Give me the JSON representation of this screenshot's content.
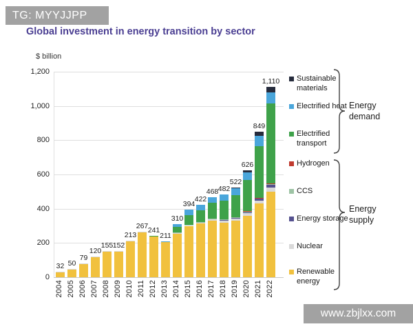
{
  "overlay_badges": {
    "top_left": "TG: MYYJJPP",
    "bottom_right": "www.zbjlxx.com"
  },
  "title": "Global investment in energy transition by sector",
  "y_axis": {
    "unit_label": "$ billion",
    "ticks": [
      {
        "value": 0,
        "label": "0"
      },
      {
        "value": 200,
        "label": "200"
      },
      {
        "value": 400,
        "label": "400"
      },
      {
        "value": 600,
        "label": "600"
      },
      {
        "value": 800,
        "label": "800"
      },
      {
        "value": 1000,
        "label": "1,000"
      },
      {
        "value": 1200,
        "label": "1,200"
      }
    ]
  },
  "chart_data": {
    "type": "bar",
    "stacked": true,
    "title": "Global investment in energy transition by sector",
    "ylabel": "$ billion",
    "ylim": [
      0,
      1200
    ],
    "grid": true,
    "categories": [
      "2004",
      "2005",
      "2006",
      "2007",
      "2008",
      "2009",
      "2010",
      "2011",
      "2012",
      "2013",
      "2014",
      "2015",
      "2016",
      "2017",
      "2018",
      "2019",
      "2020",
      "2021",
      "2022"
    ],
    "totals": [
      32,
      50,
      79,
      120,
      155,
      152,
      213,
      267,
      241,
      211,
      310,
      394,
      422,
      468,
      482,
      522,
      626,
      849,
      1110
    ],
    "total_labels": [
      "32",
      "50",
      "79",
      "120",
      "155",
      "152",
      "213",
      "267",
      "241",
      "211",
      "310",
      "394",
      "422",
      "468",
      "482",
      "522",
      "626",
      "849",
      "1,110"
    ],
    "series_note": "segment values estimated from pixel heights; stack order bottom-to-top",
    "series": [
      {
        "name": "Renewable energy",
        "color": "#F1C13E",
        "values": [
          31,
          49,
          77,
          118,
          152,
          149,
          209,
          263,
          236,
          205,
          255,
          300,
          315,
          330,
          320,
          330,
          360,
          430,
          500
        ]
      },
      {
        "name": "Nuclear",
        "color": "#D9D9D9",
        "values": [
          1,
          1,
          2,
          2,
          3,
          3,
          4,
          4,
          4,
          4,
          5,
          5,
          6,
          10,
          12,
          14,
          15,
          18,
          25
        ]
      },
      {
        "name": "Energy storage",
        "color": "#55518F",
        "values": [
          0,
          0,
          0,
          0,
          0,
          0,
          0,
          0,
          0,
          0,
          1,
          2,
          2,
          3,
          4,
          5,
          6,
          10,
          16
        ]
      },
      {
        "name": "CCS",
        "color": "#9DC3A4",
        "values": [
          0,
          0,
          0,
          0,
          0,
          0,
          0,
          0,
          0,
          0,
          1,
          1,
          1,
          1,
          2,
          2,
          3,
          4,
          6
        ]
      },
      {
        "name": "Hydrogen",
        "color": "#C03A2E",
        "values": [
          0,
          0,
          0,
          0,
          0,
          0,
          0,
          0,
          0,
          0,
          0,
          0,
          0,
          0,
          0,
          0,
          2,
          2,
          2
        ]
      },
      {
        "name": "Electrified transport",
        "color": "#3FA24A",
        "values": [
          0,
          0,
          0,
          0,
          0,
          0,
          0,
          0,
          1,
          1,
          30,
          56,
          68,
          90,
          108,
          130,
          180,
          300,
          466
        ]
      },
      {
        "name": "Electrified heat",
        "color": "#4AA6DB",
        "values": [
          0,
          0,
          0,
          0,
          0,
          0,
          0,
          0,
          0,
          1,
          18,
          30,
          30,
          34,
          36,
          37,
          46,
          60,
          64
        ]
      },
      {
        "name": "Sustainable materials",
        "color": "#262B3C",
        "values": [
          0,
          0,
          0,
          0,
          0,
          0,
          0,
          0,
          0,
          0,
          0,
          0,
          0,
          0,
          0,
          4,
          14,
          25,
          31
        ]
      }
    ]
  },
  "legend": {
    "groups": [
      {
        "label": "Energy demand",
        "items": [
          {
            "name": "Sustainable materials",
            "color": "#262B3C"
          },
          {
            "name": "Electrified heat",
            "color": "#4AA6DB"
          },
          {
            "name": "Electrified transport",
            "color": "#3FA24A"
          }
        ]
      },
      {
        "label": "Energy supply",
        "items": [
          {
            "name": "Hydrogen",
            "color": "#C03A2E"
          },
          {
            "name": "CCS",
            "color": "#9DC3A4"
          },
          {
            "name": "Energy storage",
            "color": "#55518F"
          },
          {
            "name": "Nuclear",
            "color": "#D9D9D9"
          },
          {
            "name": "Renewable energy",
            "color": "#F1C13E"
          }
        ]
      }
    ]
  }
}
